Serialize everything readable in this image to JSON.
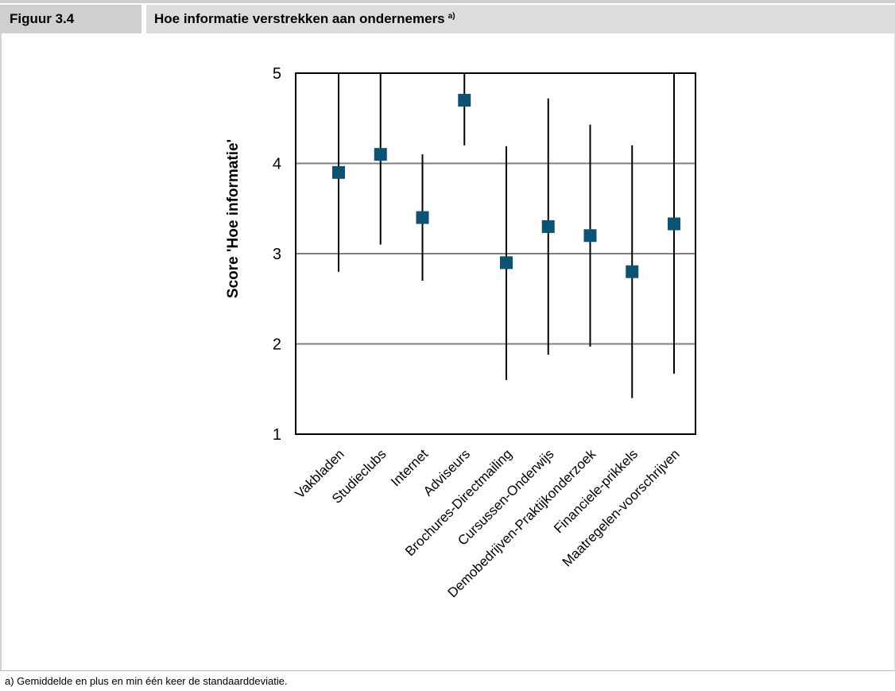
{
  "header": {
    "figure_label": "Figuur 3.4",
    "title": "Hoe informatie verstrekken aan ondernemers",
    "title_sup": "a)"
  },
  "footnote": "a) Gemiddelde en plus en min één keer de standaarddeviatie.",
  "colors": {
    "marker": "#0b5375",
    "errorbar": "#000000",
    "grid": "#808080",
    "header_label_bg": "#cfcfcf",
    "header_title_bg": "#dcdcdc"
  },
  "chart_data": {
    "type": "scatter",
    "ylabel": "Score 'Hoe informatie'",
    "xlabel": "",
    "ylim": [
      1,
      5
    ],
    "yticks": [
      1,
      2,
      3,
      4,
      5
    ],
    "grid": true,
    "categories": [
      "Vakbladen",
      "Studieclubs",
      "Internet",
      "Adviseurs",
      "Brochures-Directmailing",
      "Cursussen-Onderwijs",
      "Demobedrijven-Praktijkonderzoek",
      "Financiele-prikkels",
      "Maatregelen-voorschrijven"
    ],
    "means": [
      3.9,
      4.1,
      3.4,
      4.7,
      2.9,
      3.3,
      3.2,
      2.8,
      3.33
    ],
    "lower": [
      2.8,
      3.1,
      2.7,
      4.2,
      1.6,
      1.88,
      1.97,
      1.4,
      1.67
    ],
    "upper": [
      5.0,
      5.0,
      4.1,
      5.0,
      4.19,
      4.72,
      4.43,
      4.2,
      5.0
    ]
  }
}
